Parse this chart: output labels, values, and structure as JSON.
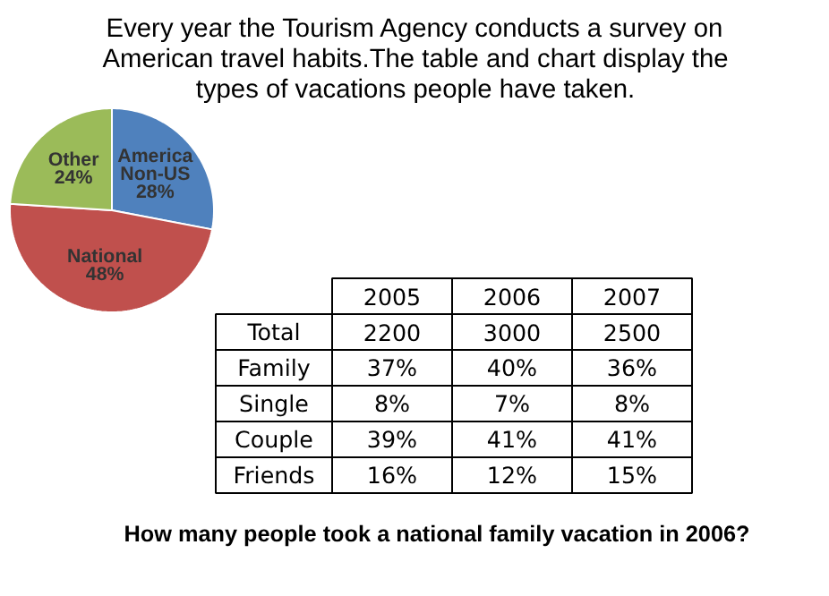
{
  "chart_data": [
    {
      "type": "pie",
      "title": "Every year the Tourism Agency conducts a survey on American travel habits.The table and chart display the types of vacations people have taken.",
      "categories": [
        "America Non-US",
        "National",
        "Other"
      ],
      "values": [
        28,
        48,
        24
      ],
      "value_labels": [
        "28%",
        "48%",
        "24%"
      ],
      "colors": [
        "#4f81bd",
        "#c0504d",
        "#9bbb59"
      ],
      "annotations": [
        "How many people took a national family vacation in 2006?"
      ]
    },
    {
      "type": "other",
      "categories": [
        "2005",
        "2006",
        "2007"
      ],
      "y_categories": [
        "Total",
        "Family",
        "Single",
        "Couple",
        "Friends"
      ],
      "cell_labels": [
        [
          "2200",
          "3000",
          "2500"
        ],
        [
          "37%",
          "40%",
          "36%"
        ],
        [
          "8%",
          "7%",
          "8%"
        ],
        [
          "39%",
          "41%",
          "41%"
        ],
        [
          "16%",
          "12%",
          "15%"
        ]
      ]
    }
  ]
}
